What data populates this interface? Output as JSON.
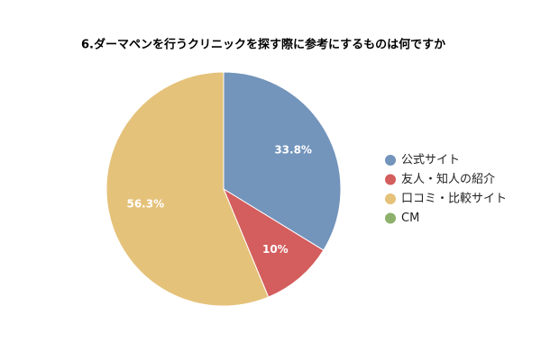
{
  "chart_data": {
    "type": "pie",
    "title": "6.ダーマペンを行うクリニックを探す際に参考にするものは何ですか",
    "categories": [
      "公式サイト",
      "友人・知人の紹介",
      "口コミ・比較サイト",
      "CM"
    ],
    "values": [
      33.8,
      10,
      56.3,
      0
    ],
    "value_labels": [
      "33.8%",
      "10%",
      "56.3%",
      null
    ],
    "colors": [
      "#7394bb",
      "#d45d5d",
      "#e5c27a",
      "#8db06a"
    ],
    "legend": "right"
  }
}
